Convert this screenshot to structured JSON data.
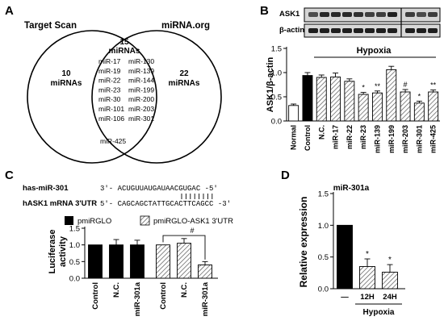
{
  "panel_labels": {
    "a": "A",
    "b": "B",
    "c": "C",
    "d": "D"
  },
  "panel_a": {
    "left_set_title": "Target Scan",
    "right_set_title": "miRNA.org",
    "left_only": {
      "count": "10",
      "label": "miRNAs"
    },
    "right_only": {
      "count": "22",
      "label": "miRNAs"
    },
    "shared": {
      "count": "15",
      "label": "miRNAs"
    },
    "shared_list_left": [
      "miR-17",
      "miR-19",
      "miR-22",
      "miR-23",
      "miR-30",
      "miR-101",
      "miR-106"
    ],
    "shared_list_right": [
      "miR-130",
      "miR-139",
      "miR-144",
      "miR-199",
      "miR-200",
      "miR-203",
      "miR-301"
    ],
    "shared_list_bottom": "miR-425"
  },
  "panel_b": {
    "blot_labels": [
      "ASK1",
      "β-actin"
    ],
    "treatment_label": "Hypoxia",
    "sig_markers": [
      "*",
      "**",
      "#",
      "*",
      "**"
    ]
  },
  "panel_c": {
    "mirna_label": "has-miR-301",
    "mirna_seq": "3'- ACUGUUAUGAUAACGUGAC -5'",
    "mrna_label": "hASK1 mRNA 3'UTR",
    "mrna_seq": "5'- CAGCAGCTATTGCACTTCAGCC -3'",
    "legend": [
      "pmiRGLO",
      "pmiRGLO-ASK1 3'UTR"
    ],
    "sig_markers": [
      "#"
    ]
  },
  "panel_d": {
    "title": "miR-301a",
    "group_label": "Hypoxia",
    "sig_markers": [
      "*",
      "*"
    ]
  },
  "chart_data": [
    {
      "type": "bar",
      "panel": "B",
      "categories": [
        "Normal",
        "Control",
        "N.C.",
        "miR-17",
        "miR-22",
        "miR-23",
        "miR-139",
        "miR-199",
        "miR-203",
        "miR-301",
        "miR-425"
      ],
      "values": [
        0.32,
        0.94,
        0.9,
        0.91,
        0.82,
        0.55,
        0.58,
        1.06,
        0.6,
        0.37,
        0.6
      ],
      "errors": [
        0.03,
        0.06,
        0.05,
        0.08,
        0.05,
        0.04,
        0.04,
        0.07,
        0.05,
        0.04,
        0.04
      ],
      "ylabel": "ASK1/β-actin",
      "ylim": [
        0.0,
        1.5
      ],
      "yticks": [
        "0.0",
        "0.5",
        "1.0",
        "1.5"
      ],
      "fills": [
        "#ffffff",
        "#000000",
        "hatch",
        "hatch",
        "hatch",
        "hatch",
        "hatch",
        "hatch",
        "hatch",
        "hatch",
        "hatch"
      ]
    },
    {
      "type": "bar",
      "panel": "C",
      "categories": [
        "Control",
        "N.C.",
        "miR-301a",
        "Control",
        "N.C.",
        "miR-301a"
      ],
      "values": [
        1.0,
        1.0,
        1.0,
        1.0,
        1.05,
        0.4
      ],
      "errors": [
        0.0,
        0.16,
        0.14,
        0.0,
        0.14,
        0.1
      ],
      "series_index": [
        0,
        0,
        0,
        1,
        1,
        1
      ],
      "series": [
        {
          "name": "pmiRGLO"
        },
        {
          "name": "pmiRGLO-ASK1 3'UTR"
        }
      ],
      "ylabel_lines": [
        "Luciferase",
        "activity"
      ],
      "ylim": [
        0.0,
        1.5
      ],
      "yticks": [
        "0.0",
        "0.5",
        "1.0",
        "1.5"
      ]
    },
    {
      "type": "bar",
      "panel": "D",
      "title": "miR-301a",
      "categories": [
        "—",
        "12H",
        "24H"
      ],
      "values": [
        1.0,
        0.35,
        0.26
      ],
      "errors": [
        0.0,
        0.12,
        0.12
      ],
      "fills": [
        "#000000",
        "hatch",
        "hatch"
      ],
      "ylabel": "Relative expression",
      "ylim": [
        0.0,
        1.5
      ],
      "yticks": [
        "0.0",
        "0.5",
        "1.0",
        "1.5"
      ]
    }
  ]
}
